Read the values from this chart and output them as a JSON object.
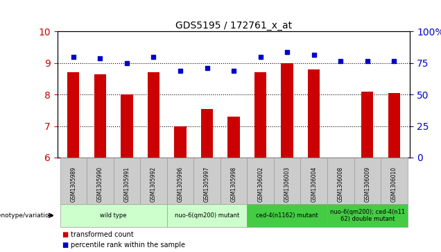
{
  "title": "GDS5195 / 172761_x_at",
  "samples": [
    "GSM1305989",
    "GSM1305990",
    "GSM1305991",
    "GSM1305992",
    "GSM1305996",
    "GSM1305997",
    "GSM1305998",
    "GSM1306002",
    "GSM1306003",
    "GSM1306004",
    "GSM1306008",
    "GSM1306009",
    "GSM1306010"
  ],
  "bar_values": [
    8.7,
    8.65,
    8.0,
    8.7,
    7.0,
    7.55,
    7.3,
    8.7,
    9.0,
    8.8,
    6.0,
    8.1,
    8.05
  ],
  "dot_values_pct": [
    80.0,
    78.75,
    75.0,
    80.0,
    68.75,
    71.25,
    68.75,
    80.0,
    83.75,
    81.25,
    76.25,
    76.25,
    76.25
  ],
  "bar_color": "#cc0000",
  "dot_color": "#0000cc",
  "ylim_left": [
    6,
    10
  ],
  "ylim_right": [
    0,
    100
  ],
  "yticks_left": [
    6,
    7,
    8,
    9,
    10
  ],
  "yticks_right": [
    0,
    25,
    50,
    75,
    100
  ],
  "groups": [
    {
      "label": "wild type",
      "indices": [
        0,
        1,
        2,
        3
      ],
      "color": "#ccffcc"
    },
    {
      "label": "nuo-6(qm200) mutant",
      "indices": [
        4,
        5,
        6
      ],
      "color": "#ccffcc"
    },
    {
      "label": "ced-4(n1162) mutant",
      "indices": [
        7,
        8,
        9
      ],
      "color": "#44cc44"
    },
    {
      "label": "nuo-6(qm200); ced-4(n11\n62) double mutant",
      "indices": [
        10,
        11,
        12
      ],
      "color": "#44cc44"
    }
  ],
  "legend_bar_label": "transformed count",
  "legend_dot_label": "percentile rank within the sample",
  "genotype_label": "genotype/variation",
  "background_color": "#ffffff",
  "plot_bg_color": "#ffffff",
  "tick_label_color_left": "#cc0000",
  "tick_label_color_right": "#0000cc",
  "grid_color": "#000000",
  "sample_cell_color": "#cccccc",
  "bar_width": 0.45
}
